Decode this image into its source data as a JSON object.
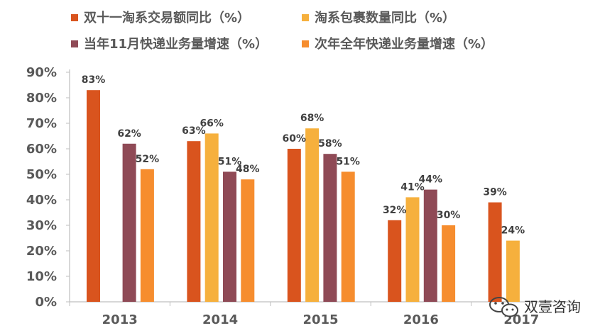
{
  "chart_data": {
    "type": "bar",
    "categories": [
      "2013",
      "2014",
      "2015",
      "2016",
      "2017"
    ],
    "series": [
      {
        "name": "双十一淘系交易额同比（%）",
        "color": "#D9541E",
        "values": [
          83,
          63,
          60,
          32,
          39
        ]
      },
      {
        "name": "淘系包裹数量同比（%）",
        "color": "#F6B03D",
        "values": [
          null,
          66,
          68,
          41,
          24
        ]
      },
      {
        "name": "当年11月快递业务量增速（%）",
        "color": "#8F4A56",
        "values": [
          62,
          51,
          58,
          44,
          null
        ]
      },
      {
        "name": "次年全年快递业务量增速（%）",
        "color": "#F68D2E",
        "values": [
          52,
          48,
          51,
          30,
          null
        ]
      }
    ],
    "data_labels": [
      [
        "83%",
        null,
        "62%",
        "52%"
      ],
      [
        "63%",
        "66%",
        "51%",
        "48%"
      ],
      [
        "60%",
        "68%",
        "58%",
        "51%"
      ],
      [
        "32%",
        "41%",
        "44%",
        "30%"
      ],
      [
        "39%",
        "24%",
        null,
        null
      ]
    ],
    "yticks": [
      "0%",
      "10%",
      "20%",
      "30%",
      "40%",
      "50%",
      "60%",
      "70%",
      "80%",
      "90%"
    ],
    "ylim": [
      0,
      90
    ],
    "legend_position": "top",
    "grid": false
  },
  "watermark": {
    "text": "双壹咨询",
    "icon": "wechat-icon"
  }
}
